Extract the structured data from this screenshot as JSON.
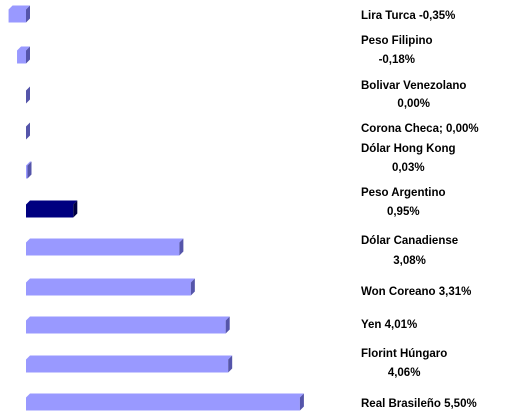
{
  "chart_data": {
    "type": "hbar",
    "categories": [
      [
        "Lira Turca -0,35%"
      ],
      [
        "Peso Filipino",
        "-0,18%"
      ],
      [
        "Bolivar Venezolano",
        "0,00%"
      ],
      [
        "Corona Checa; 0,00%"
      ],
      [
        "Dólar Hong Kong",
        "0,03%"
      ],
      [
        "Peso Argentino",
        "0,95%"
      ],
      [
        "Dólar Canadiense",
        "3,08%"
      ],
      [
        "Won Coreano 3,31%"
      ],
      [
        "Yen 4,01%"
      ],
      [
        "Florint Húngaro",
        "4,06%"
      ],
      [
        "Real Brasileño 5,50%"
      ]
    ],
    "values": [
      -0.35,
      -0.18,
      0.0,
      0.0,
      0.03,
      0.95,
      3.08,
      3.31,
      4.01,
      4.06,
      5.5
    ],
    "colors": [
      "#9999ff",
      "#9999ff",
      "#9999ff",
      "#9999ff",
      "#9999ff",
      "#000080",
      "#9999ff",
      "#9999ff",
      "#9999ff",
      "#9999ff",
      "#9999ff"
    ],
    "xlim": [
      -0.5,
      6.0
    ]
  }
}
